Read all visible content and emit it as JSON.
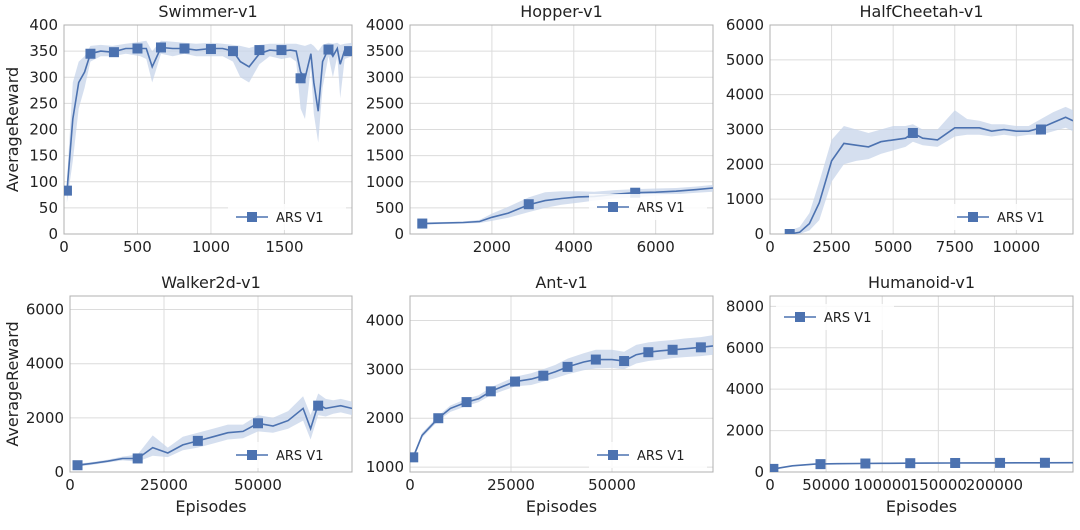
{
  "colors": {
    "series": "#4c72b0",
    "band": "#c7d4ea",
    "grid": "#dcdcdc",
    "axis": "#b0b0b0"
  },
  "chart_data": [
    {
      "type": "line",
      "title": "Swimmer-v1",
      "xlabel": "",
      "ylabel": "AverageReward",
      "xlim": [
        0,
        1960
      ],
      "ylim": [
        0,
        400
      ],
      "xticks": [
        0,
        500,
        1000,
        1500
      ],
      "yticks": [
        0,
        50,
        100,
        150,
        200,
        250,
        300,
        350,
        400
      ],
      "grid": true,
      "legend": {
        "placement": "bottom-right"
      },
      "series": [
        {
          "name": "ARS V1",
          "x": [
            20,
            60,
            100,
            140,
            180,
            250,
            330,
            420,
            520,
            560,
            600,
            660,
            740,
            820,
            900,
            1000,
            1080,
            1150,
            1200,
            1260,
            1330,
            1400,
            1480,
            1540,
            1580,
            1610,
            1640,
            1680,
            1700,
            1730,
            1760,
            1800,
            1830,
            1860,
            1880,
            1910,
            1960
          ],
          "y": [
            80,
            220,
            290,
            310,
            345,
            350,
            348,
            355,
            355,
            355,
            320,
            357,
            355,
            355,
            352,
            355,
            355,
            350,
            330,
            320,
            345,
            352,
            350,
            352,
            350,
            310,
            298,
            345,
            290,
            235,
            330,
            355,
            340,
            355,
            325,
            352,
            355
          ],
          "lower": [
            60,
            140,
            240,
            280,
            330,
            340,
            340,
            345,
            340,
            335,
            290,
            345,
            340,
            345,
            340,
            340,
            340,
            330,
            300,
            290,
            325,
            340,
            335,
            338,
            330,
            240,
            220,
            320,
            230,
            175,
            280,
            340,
            300,
            340,
            260,
            335,
            340
          ],
          "upper": [
            100,
            290,
            330,
            340,
            360,
            362,
            360,
            364,
            368,
            370,
            350,
            370,
            368,
            366,
            364,
            366,
            364,
            362,
            360,
            356,
            362,
            364,
            364,
            364,
            364,
            362,
            360,
            364,
            360,
            350,
            362,
            366,
            364,
            366,
            362,
            364,
            366
          ],
          "markers": [
            [
              20,
              83
            ],
            [
              180,
              345
            ],
            [
              340,
              348
            ],
            [
              500,
              355
            ],
            [
              660,
              357
            ],
            [
              820,
              355
            ],
            [
              1000,
              354
            ],
            [
              1150,
              350
            ],
            [
              1330,
              352
            ],
            [
              1480,
              352
            ],
            [
              1610,
              298
            ],
            [
              1800,
              353
            ],
            [
              1940,
              350
            ]
          ]
        }
      ]
    },
    {
      "type": "line",
      "title": "Hopper-v1",
      "xlabel": "",
      "ylabel": "",
      "xlim": [
        0,
        7400
      ],
      "ylim": [
        0,
        4000
      ],
      "xticks": [
        2000,
        4000,
        6000
      ],
      "yticks": [
        0,
        500,
        1000,
        1500,
        2000,
        2500,
        3000,
        3500,
        4000
      ],
      "grid": true,
      "legend": {
        "placement": "lower-right"
      },
      "series": [
        {
          "name": "ARS V1",
          "x": [
            300,
            800,
            1300,
            1700,
            2000,
            2400,
            2900,
            3300,
            3700,
            4100,
            4500,
            5000,
            5500,
            6000,
            6500,
            7000,
            7400
          ],
          "y": [
            200,
            210,
            220,
            240,
            320,
            400,
            560,
            640,
            680,
            710,
            720,
            760,
            790,
            800,
            820,
            850,
            880
          ],
          "lower": [
            180,
            190,
            200,
            210,
            250,
            310,
            420,
            500,
            560,
            600,
            640,
            680,
            700,
            730,
            760,
            790,
            810
          ],
          "upper": [
            220,
            230,
            240,
            270,
            390,
            520,
            700,
            800,
            820,
            820,
            810,
            840,
            860,
            870,
            880,
            910,
            940
          ],
          "markers": [
            [
              300,
              200
            ],
            [
              2900,
              570
            ],
            [
              5500,
              790
            ]
          ]
        }
      ]
    },
    {
      "type": "line",
      "title": "HalfCheetah-v1",
      "xlabel": "",
      "ylabel": "",
      "xlim": [
        0,
        12300
      ],
      "ylim": [
        0,
        6000
      ],
      "xticks": [
        0,
        2500,
        5000,
        7500,
        10000
      ],
      "yticks": [
        0,
        1000,
        2000,
        3000,
        4000,
        5000,
        6000
      ],
      "grid": true,
      "legend": {
        "placement": "bottom-right"
      },
      "series": [
        {
          "name": "ARS V1",
          "x": [
            800,
            1200,
            1600,
            2000,
            2500,
            3000,
            3500,
            4000,
            4500,
            5000,
            5500,
            5800,
            6200,
            6800,
            7500,
            8000,
            8500,
            9000,
            9500,
            10000,
            10500,
            11000,
            11500,
            12000,
            12300
          ],
          "y": [
            0,
            50,
            300,
            900,
            2100,
            2600,
            2550,
            2500,
            2650,
            2700,
            2750,
            2900,
            2750,
            2700,
            3050,
            3050,
            3050,
            2950,
            3000,
            2950,
            2950,
            3050,
            3200,
            3350,
            3250
          ],
          "lower": [
            0,
            0,
            100,
            400,
            1500,
            2000,
            2100,
            2150,
            2300,
            2400,
            2500,
            2650,
            2550,
            2500,
            2800,
            2850,
            2850,
            2800,
            2850,
            2800,
            2850,
            2850,
            2950,
            3050,
            2950
          ],
          "upper": [
            100,
            200,
            600,
            1500,
            2700,
            3100,
            3000,
            2900,
            3000,
            3100,
            3100,
            3150,
            3000,
            3000,
            3550,
            3300,
            3250,
            3150,
            3150,
            3100,
            3100,
            3300,
            3500,
            3650,
            3550
          ],
          "markers": [
            [
              800,
              0
            ],
            [
              5800,
              2900
            ],
            [
              11000,
              3000
            ]
          ]
        }
      ]
    },
    {
      "type": "line",
      "title": "Walker2d-v1",
      "xlabel": "Episodes",
      "ylabel": "AverageReward",
      "xlim": [
        0,
        75000
      ],
      "ylim": [
        0,
        6500
      ],
      "xticks": [
        0,
        25000,
        50000
      ],
      "yticks": [
        0,
        2000,
        4000,
        6000
      ],
      "grid": true,
      "legend": {
        "placement": "bottom-right"
      },
      "series": [
        {
          "name": "ARS V1",
          "x": [
            2000,
            6000,
            10000,
            14000,
            18000,
            22000,
            26000,
            30000,
            34000,
            38000,
            42000,
            46000,
            50000,
            54000,
            58000,
            62000,
            64000,
            66000,
            68000,
            70000,
            72000,
            75000
          ],
          "y": [
            250,
            320,
            400,
            500,
            500,
            900,
            700,
            1000,
            1150,
            1300,
            1450,
            1500,
            1800,
            1700,
            1900,
            2350,
            1600,
            2500,
            2350,
            2400,
            2450,
            2350
          ],
          "lower": [
            200,
            270,
            350,
            430,
            380,
            600,
            550,
            800,
            900,
            1050,
            1200,
            1250,
            1500,
            1450,
            1600,
            1900,
            1200,
            2100,
            2050,
            2150,
            2200,
            2100
          ],
          "upper": [
            300,
            370,
            450,
            570,
            650,
            1350,
            900,
            1300,
            1450,
            1600,
            1750,
            1750,
            2100,
            2000,
            2250,
            2800,
            2100,
            2900,
            2700,
            2650,
            2700,
            2600
          ],
          "markers": [
            [
              2000,
              250
            ],
            [
              18000,
              500
            ],
            [
              34000,
              1150
            ],
            [
              50000,
              1800
            ],
            [
              66000,
              2450
            ]
          ]
        }
      ]
    },
    {
      "type": "line",
      "title": "Ant-v1",
      "xlabel": "Episodes",
      "ylabel": "",
      "xlim": [
        0,
        75000
      ],
      "ylim": [
        900,
        4500
      ],
      "xticks": [
        0,
        25000,
        50000
      ],
      "yticks": [
        1000,
        2000,
        3000,
        4000
      ],
      "grid": true,
      "legend": {
        "placement": "bottom-right"
      },
      "series": [
        {
          "name": "ARS V1",
          "x": [
            800,
            3000,
            7000,
            10000,
            14000,
            17000,
            20000,
            23000,
            26000,
            30000,
            33000,
            36000,
            39000,
            43000,
            46000,
            50000,
            53000,
            56000,
            59000,
            62000,
            65000,
            68000,
            72000,
            75000
          ],
          "y": [
            1200,
            1650,
            2000,
            2200,
            2330,
            2400,
            2550,
            2650,
            2750,
            2800,
            2870,
            2950,
            3050,
            3150,
            3200,
            3200,
            3170,
            3300,
            3350,
            3380,
            3400,
            3420,
            3450,
            3480
          ],
          "lower": [
            1150,
            1600,
            1950,
            2130,
            2250,
            2330,
            2470,
            2560,
            2650,
            2680,
            2750,
            2820,
            2900,
            2980,
            3020,
            3030,
            3000,
            3120,
            3170,
            3200,
            3230,
            3250,
            3270,
            3300
          ],
          "upper": [
            1250,
            1700,
            2050,
            2260,
            2400,
            2470,
            2630,
            2740,
            2850,
            2920,
            3000,
            3090,
            3220,
            3330,
            3400,
            3400,
            3360,
            3500,
            3550,
            3580,
            3600,
            3630,
            3660,
            3700
          ],
          "markers": [
            [
              800,
              1200
            ],
            [
              7000,
              2000
            ],
            [
              14000,
              2330
            ],
            [
              20000,
              2550
            ],
            [
              26000,
              2750
            ],
            [
              33000,
              2870
            ],
            [
              39000,
              3050
            ],
            [
              46000,
              3200
            ],
            [
              53000,
              3170
            ],
            [
              59000,
              3350
            ],
            [
              65000,
              3400
            ],
            [
              72000,
              3450
            ]
          ]
        }
      ]
    },
    {
      "type": "line",
      "title": "Humanoid-v1",
      "xlabel": "Episodes",
      "ylabel": "",
      "xlim": [
        0,
        270000
      ],
      "ylim": [
        0,
        8500
      ],
      "xticks": [
        0,
        50000,
        100000,
        150000,
        200000
      ],
      "yticks": [
        0,
        2000,
        4000,
        6000,
        8000
      ],
      "grid": true,
      "legend": {
        "placement": "top-left"
      },
      "series": [
        {
          "name": "ARS V1",
          "x": [
            3000,
            20000,
            40000,
            60000,
            80000,
            100000,
            120000,
            140000,
            160000,
            180000,
            200000,
            220000,
            240000,
            270000
          ],
          "y": [
            150,
            300,
            380,
            400,
            410,
            420,
            425,
            430,
            435,
            440,
            440,
            445,
            445,
            450
          ],
          "lower": [
            130,
            270,
            350,
            370,
            380,
            390,
            395,
            400,
            405,
            410,
            410,
            415,
            415,
            420
          ],
          "upper": [
            170,
            330,
            410,
            430,
            440,
            450,
            455,
            460,
            465,
            470,
            470,
            475,
            475,
            480
          ],
          "markers": [
            [
              3000,
              150
            ],
            [
              45000,
              380
            ],
            [
              85000,
              410
            ],
            [
              125000,
              425
            ],
            [
              165000,
              435
            ],
            [
              205000,
              440
            ],
            [
              245000,
              445
            ]
          ]
        }
      ]
    }
  ]
}
